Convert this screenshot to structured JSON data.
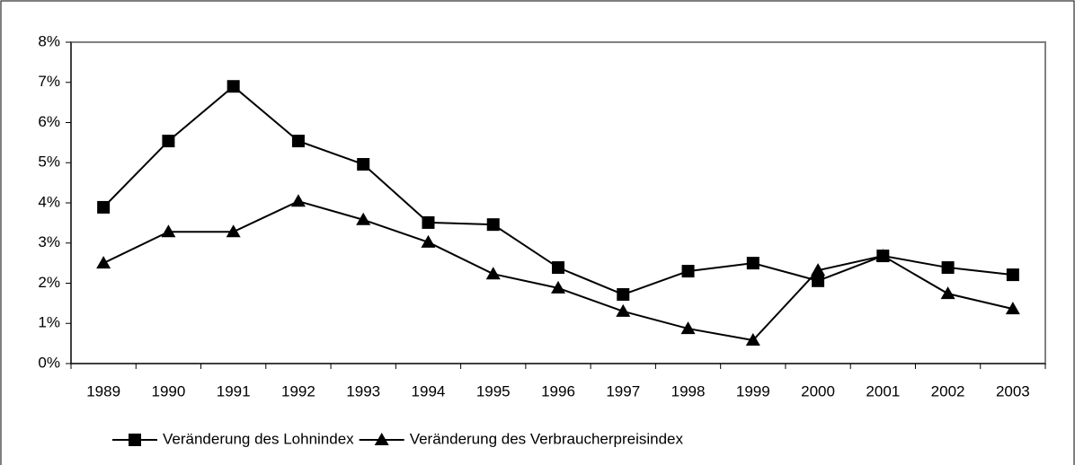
{
  "chart_data": {
    "type": "line",
    "categories": [
      "1989",
      "1990",
      "1991",
      "1992",
      "1993",
      "1994",
      "1995",
      "1996",
      "1997",
      "1998",
      "1999",
      "2000",
      "2001",
      "2002",
      "2003"
    ],
    "series": [
      {
        "name": "Veränderung des Lohnindex",
        "color": "#000000",
        "marker": "square",
        "values": [
          3.89,
          5.54,
          6.9,
          5.54,
          4.96,
          3.51,
          3.46,
          2.39,
          1.72,
          2.3,
          2.5,
          2.06,
          2.68,
          2.39,
          2.21
        ]
      },
      {
        "name": "Veränderung des Verbraucherpreisindex",
        "color": "#000000",
        "marker": "triangle",
        "values": [
          2.5,
          3.28,
          3.28,
          4.04,
          3.58,
          3.02,
          2.23,
          1.88,
          1.3,
          0.87,
          0.58,
          2.32,
          2.68,
          1.74,
          1.36
        ]
      }
    ],
    "ylim": [
      0,
      8
    ],
    "yticks": [
      {
        "value": 0,
        "label": "0%"
      },
      {
        "value": 1,
        "label": "1%"
      },
      {
        "value": 2,
        "label": "2%"
      },
      {
        "value": 3,
        "label": "3%"
      },
      {
        "value": 4,
        "label": "4%"
      },
      {
        "value": 5,
        "label": "5%"
      },
      {
        "value": 6,
        "label": "6%"
      },
      {
        "value": 7,
        "label": "7%"
      },
      {
        "value": 8,
        "label": "8%"
      }
    ],
    "grid": false,
    "legend": "bottom"
  }
}
